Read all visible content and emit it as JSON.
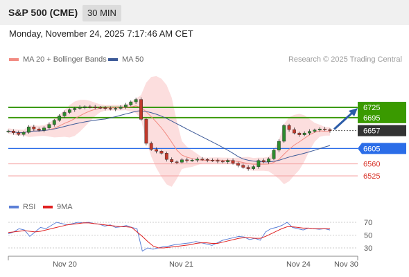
{
  "header": {
    "title": "S&P 500 (CME)",
    "timeframe": "30 MIN"
  },
  "datetime": "Monday, November 24, 2025 7:17:46 AM CET",
  "legend": {
    "items": [
      {
        "label": "MA 20 + Bollinger Bands",
        "color": "#f28b82"
      },
      {
        "label": "MA 50",
        "color": "#3d5a98"
      }
    ],
    "research": "Research © 2025 Trading Central"
  },
  "rsi_legend": {
    "items": [
      {
        "label": "RSI",
        "color": "#5b7fd6"
      },
      {
        "label": "9MA",
        "color": "#e02020"
      }
    ]
  },
  "x_labels": [
    "Nov 20",
    "Nov 21",
    "Nov 24",
    "Nov 30"
  ],
  "colors": {
    "resistance": "#3a9a00",
    "support": "#2b6de8",
    "pivot_line": "#f4a0a0",
    "current": "#333333",
    "candle_up": "#2e8b2e",
    "candle_down": "#c0392b",
    "bb_fill": "#fbd3d3",
    "arrow": "#2b5ca8"
  },
  "chart_data": [
    {
      "type": "candlestick",
      "title": "S&P 500 (CME)",
      "timeframe": "30 MIN",
      "x_ticks": [
        "Nov 20",
        "Nov 21",
        "Nov 24",
        "Nov 30"
      ],
      "y_range": [
        6510,
        6760
      ],
      "close_path": [
        6656,
        6651,
        6646,
        6652,
        6668,
        6662,
        6658,
        6665,
        6675,
        6687,
        6700,
        6710,
        6718,
        6722,
        6725,
        6727,
        6726,
        6725,
        6724,
        6722,
        6720,
        6722,
        6726,
        6732,
        6741,
        6748,
        6690,
        6620,
        6602,
        6597,
        6591,
        6573,
        6566,
        6565,
        6572,
        6570,
        6571,
        6574,
        6573,
        6571,
        6570,
        6568,
        6566,
        6570,
        6562,
        6556,
        6550,
        6546,
        6552,
        6570,
        6566,
        6575,
        6600,
        6626,
        6672,
        6660,
        6650,
        6645,
        6650,
        6655,
        6659,
        6662,
        6660,
        6657
      ],
      "price_levels": [
        {
          "label": "6725",
          "value": 6725,
          "type": "resistance"
        },
        {
          "label": "6695",
          "value": 6695,
          "type": "resistance"
        },
        {
          "label": "6657",
          "value": 6657,
          "type": "current"
        },
        {
          "label": "6605",
          "value": 6605,
          "type": "support"
        },
        {
          "label": "6560",
          "value": 6560,
          "type": "pivot"
        },
        {
          "label": "6525",
          "value": 6525,
          "type": "pivot"
        }
      ],
      "indicators": [
        "MA 20 + Bollinger Bands",
        "MA 50"
      ],
      "forecast": {
        "direction": "up",
        "from": 6657,
        "target": 6725
      }
    },
    {
      "type": "line",
      "title": "RSI",
      "y_ticks": [
        70,
        50,
        30
      ],
      "series": [
        {
          "name": "RSI",
          "values": [
            52,
            55,
            60,
            58,
            48,
            55,
            62,
            60,
            65,
            70,
            68,
            66,
            68,
            70,
            69,
            70,
            68,
            67,
            64,
            66,
            62,
            63,
            65,
            62,
            60,
            25,
            30,
            28,
            30,
            32,
            33,
            35,
            36,
            37,
            38,
            40,
            38,
            36,
            34,
            38,
            42,
            44,
            46,
            48,
            47,
            43,
            45,
            42,
            55,
            60,
            62,
            65,
            70,
            62,
            60,
            58,
            61,
            60,
            59,
            60,
            58
          ]
        },
        {
          "name": "9MA",
          "values": [
            54,
            55,
            56,
            57,
            56,
            55,
            56,
            58,
            60,
            62,
            64,
            66,
            67,
            68,
            69,
            69,
            68,
            67,
            66,
            65,
            64,
            63,
            63,
            62,
            55,
            48,
            40,
            33,
            30,
            30,
            31,
            32,
            33,
            34,
            35,
            37,
            38,
            38,
            37,
            37,
            39,
            41,
            43,
            45,
            46,
            46,
            45,
            45,
            48,
            52,
            56,
            60,
            63,
            63,
            62,
            61,
            61,
            60,
            60,
            60,
            60
          ]
        }
      ]
    }
  ]
}
